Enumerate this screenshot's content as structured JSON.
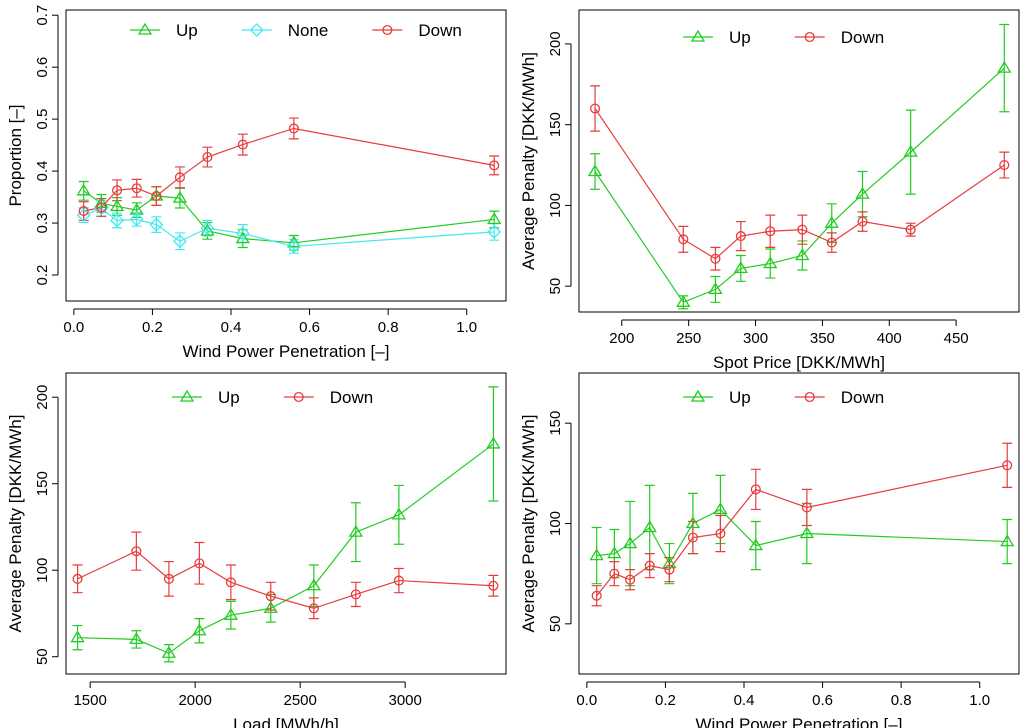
{
  "colors": {
    "up": "#22cc22",
    "none": "#44e8f0",
    "down": "#e83c3c"
  },
  "chart_data": [
    {
      "type": "line",
      "xlabel": "Wind Power Penetration [–]",
      "ylabel": "Proportion [–]",
      "xlim": [
        -0.02,
        1.1
      ],
      "ylim": [
        0.15,
        0.71
      ],
      "xticks": [
        0.0,
        0.2,
        0.4,
        0.6,
        0.8,
        1.0
      ],
      "xtick_labels": [
        "0.0",
        "0.2",
        "0.4",
        "0.6",
        "0.8",
        "1.0"
      ],
      "yticks": [
        0.2,
        0.3,
        0.4,
        0.5,
        0.6,
        0.7
      ],
      "ytick_labels": [
        "0.2",
        "0.3",
        "0.4",
        "0.5",
        "0.6",
        "0.7"
      ],
      "legend": [
        "Up",
        "None",
        "Down"
      ],
      "series": [
        {
          "name": "Up",
          "color": "up",
          "marker": "triangle",
          "x": [
            0.025,
            0.07,
            0.11,
            0.16,
            0.21,
            0.27,
            0.34,
            0.43,
            0.56,
            1.07
          ],
          "y": [
            0.362,
            0.338,
            0.332,
            0.325,
            0.352,
            0.348,
            0.285,
            0.27,
            0.262,
            0.307
          ],
          "err": [
            0.018,
            0.017,
            0.017,
            0.014,
            0.018,
            0.019,
            0.016,
            0.017,
            0.014,
            0.016
          ]
        },
        {
          "name": "None",
          "color": "none",
          "marker": "diamond",
          "x": [
            0.025,
            0.07,
            0.11,
            0.16,
            0.21,
            0.27,
            0.34,
            0.43,
            0.56,
            1.07
          ],
          "y": [
            0.315,
            0.328,
            0.305,
            0.307,
            0.297,
            0.265,
            0.29,
            0.28,
            0.255,
            0.283
          ],
          "err": [
            0.014,
            0.015,
            0.014,
            0.013,
            0.015,
            0.016,
            0.015,
            0.017,
            0.013,
            0.016
          ]
        },
        {
          "name": "Down",
          "color": "down",
          "marker": "circle",
          "x": [
            0.025,
            0.07,
            0.11,
            0.16,
            0.21,
            0.27,
            0.34,
            0.43,
            0.56,
            1.07
          ],
          "y": [
            0.323,
            0.33,
            0.363,
            0.367,
            0.352,
            0.388,
            0.427,
            0.451,
            0.482,
            0.411
          ],
          "err": [
            0.018,
            0.017,
            0.02,
            0.017,
            0.018,
            0.02,
            0.019,
            0.02,
            0.02,
            0.018
          ]
        }
      ]
    },
    {
      "type": "line",
      "xlabel": "Spot Price [DKK/MWh]",
      "ylabel": "Average Penalty [DKK/MWh]",
      "xlim": [
        168,
        497
      ],
      "ylim": [
        34,
        221
      ],
      "xticks": [
        200,
        250,
        300,
        350,
        400,
        450
      ],
      "xtick_labels": [
        "200",
        "250",
        "300",
        "350",
        "400",
        "450"
      ],
      "yticks": [
        50,
        100,
        150,
        200
      ],
      "ytick_labels": [
        "50",
        "100",
        "150",
        "200"
      ],
      "legend": [
        "Up",
        "Down"
      ],
      "series": [
        {
          "name": "Up",
          "color": "up",
          "marker": "triangle",
          "x": [
            180,
            246,
            270,
            289,
            311,
            335,
            357,
            380,
            416,
            486
          ],
          "y": [
            121,
            40,
            48,
            61,
            64,
            69,
            89,
            107,
            133,
            185
          ],
          "err": [
            11,
            4,
            8,
            8,
            9,
            9,
            12,
            14,
            26,
            27
          ]
        },
        {
          "name": "Down",
          "color": "down",
          "marker": "circle",
          "x": [
            180,
            246,
            270,
            289,
            311,
            335,
            357,
            380,
            416,
            486
          ],
          "y": [
            160,
            79,
            67,
            81,
            84,
            85,
            77,
            90,
            85,
            125
          ],
          "err": [
            14,
            8,
            7,
            9,
            10,
            9,
            6,
            6,
            4,
            8
          ]
        }
      ]
    },
    {
      "type": "line",
      "xlabel": "Load [MWh/h]",
      "ylabel": "Average Penalty [DKK/MWh]",
      "xlim": [
        1385,
        3480
      ],
      "ylim": [
        40,
        214
      ],
      "xticks": [
        1500,
        2000,
        2500,
        3000
      ],
      "xtick_labels": [
        "1500",
        "2000",
        "2500",
        "3000"
      ],
      "yticks": [
        50,
        100,
        150,
        200
      ],
      "ytick_labels": [
        "50",
        "100",
        "150",
        "200"
      ],
      "legend": [
        "Up",
        "Down"
      ],
      "series": [
        {
          "name": "Up",
          "color": "up",
          "marker": "triangle",
          "x": [
            1440,
            1720,
            1875,
            2020,
            2170,
            2360,
            2565,
            2765,
            2970,
            3420
          ],
          "y": [
            61,
            60,
            52,
            65,
            74,
            78,
            91,
            122,
            132,
            173
          ],
          "err": [
            7,
            5,
            5,
            7,
            8,
            8,
            12,
            17,
            17,
            33
          ]
        },
        {
          "name": "Down",
          "color": "down",
          "marker": "circle",
          "x": [
            1440,
            1720,
            1875,
            2020,
            2170,
            2360,
            2565,
            2765,
            2970,
            3420
          ],
          "y": [
            95,
            111,
            95,
            104,
            93,
            85,
            78,
            86,
            94,
            91
          ],
          "err": [
            8,
            11,
            10,
            12,
            10,
            8,
            6,
            7,
            7,
            6
          ]
        }
      ]
    },
    {
      "type": "line",
      "xlabel": "Wind Power Penetration [–]",
      "ylabel": "Average Penalty [DKK/MWh]",
      "xlim": [
        -0.02,
        1.1
      ],
      "ylim": [
        25,
        175
      ],
      "xticks": [
        0.0,
        0.2,
        0.4,
        0.6,
        0.8,
        1.0
      ],
      "xtick_labels": [
        "0.0",
        "0.2",
        "0.4",
        "0.6",
        "0.8",
        "1.0"
      ],
      "yticks": [
        50,
        100,
        150
      ],
      "ytick_labels": [
        "50",
        "100",
        "150"
      ],
      "legend": [
        "Up",
        "Down"
      ],
      "series": [
        {
          "name": "Up",
          "color": "up",
          "marker": "triangle",
          "x": [
            0.025,
            0.07,
            0.11,
            0.16,
            0.21,
            0.27,
            0.34,
            0.43,
            0.56,
            1.07
          ],
          "y": [
            84,
            85,
            90,
            98,
            80,
            100,
            107,
            89,
            95,
            91
          ],
          "err": [
            14,
            12,
            21,
            21,
            10,
            15,
            17,
            12,
            15,
            11
          ]
        },
        {
          "name": "Down",
          "color": "down",
          "marker": "circle",
          "x": [
            0.025,
            0.07,
            0.11,
            0.16,
            0.21,
            0.27,
            0.34,
            0.43,
            0.56,
            1.07
          ],
          "y": [
            64,
            75,
            72,
            79,
            77,
            93,
            95,
            117,
            108,
            129
          ],
          "err": [
            5,
            6,
            5,
            6,
            6,
            8,
            9,
            10,
            9,
            11
          ]
        }
      ]
    }
  ]
}
